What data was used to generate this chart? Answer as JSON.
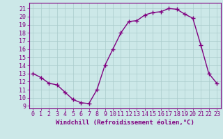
{
  "x": [
    0,
    1,
    2,
    3,
    4,
    5,
    6,
    7,
    8,
    9,
    10,
    11,
    12,
    13,
    14,
    15,
    16,
    17,
    18,
    19,
    20,
    21,
    22,
    23
  ],
  "y": [
    13,
    12.5,
    11.8,
    11.6,
    10.7,
    9.8,
    9.4,
    9.3,
    11.0,
    14.0,
    16.0,
    18.0,
    19.4,
    19.5,
    20.2,
    20.5,
    20.6,
    21.0,
    20.9,
    20.3,
    19.8,
    16.5,
    13.0,
    11.8
  ],
  "line_color": "#800080",
  "marker": "+",
  "marker_size": 4,
  "linewidth": 1.0,
  "background_color": "#cce8e8",
  "grid_color": "#aacccc",
  "xlabel": "Windchill (Refroidissement éolien,°C)",
  "ylabel_ticks": [
    9,
    10,
    11,
    12,
    13,
    14,
    15,
    16,
    17,
    18,
    19,
    20,
    21
  ],
  "ylim": [
    8.7,
    21.7
  ],
  "xlim": [
    -0.5,
    23.5
  ],
  "xlabel_fontsize": 6.5,
  "tick_fontsize": 6.0,
  "tick_color": "#800080",
  "spine_color": "#800080"
}
